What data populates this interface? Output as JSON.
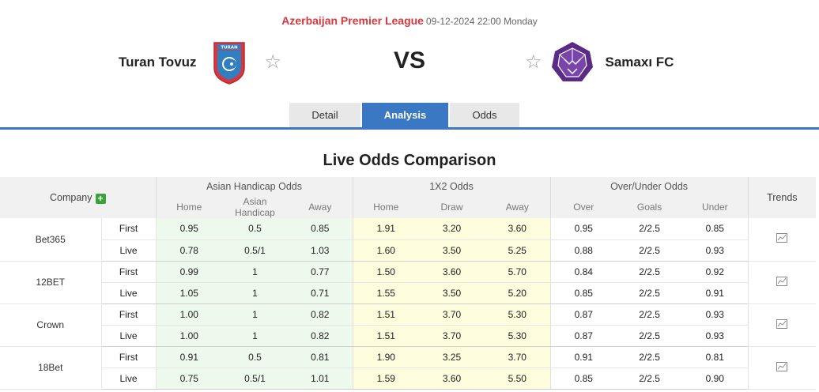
{
  "match": {
    "league": "Azerbaijan Premier League",
    "datetime": "09-12-2024 22:00 Monday",
    "home_team": "Turan Tovuz",
    "away_team": "Samaxı FC",
    "vs_label": "VS",
    "home_logo_text": "TURAN"
  },
  "tabs": [
    {
      "label": "Detail",
      "active": false
    },
    {
      "label": "Analysis",
      "active": true
    },
    {
      "label": "Odds",
      "active": false
    }
  ],
  "section_title": "Live Odds Comparison",
  "table": {
    "company_header": "Company",
    "trends_header": "Trends",
    "groups": {
      "ah": "Asian Handicap Odds",
      "x12": "1X2 Odds",
      "ou": "Over/Under Odds"
    },
    "subheaders": {
      "ah": [
        "Home",
        "Asian Handicap",
        "Away"
      ],
      "x12": [
        "Home",
        "Draw",
        "Away"
      ],
      "ou": [
        "Over",
        "Goals",
        "Under"
      ]
    },
    "companies": [
      {
        "name": "Bet365",
        "rows": [
          {
            "type": "First",
            "ah": [
              "0.95",
              "0.5",
              "0.85"
            ],
            "x12": [
              "1.91",
              "3.20",
              "3.60"
            ],
            "ou": [
              "0.95",
              "2/2.5",
              "0.85"
            ]
          },
          {
            "type": "Live",
            "ah": [
              "0.78",
              "0.5/1",
              "1.03"
            ],
            "x12": [
              "1.60",
              "3.50",
              "5.25"
            ],
            "ou": [
              "0.88",
              "2/2.5",
              "0.93"
            ]
          }
        ]
      },
      {
        "name": "12BET",
        "rows": [
          {
            "type": "First",
            "ah": [
              "0.99",
              "1",
              "0.77"
            ],
            "x12": [
              "1.50",
              "3.60",
              "5.70"
            ],
            "ou": [
              "0.84",
              "2/2.5",
              "0.92"
            ]
          },
          {
            "type": "Live",
            "ah": [
              "1.05",
              "1",
              "0.71"
            ],
            "x12": [
              "1.55",
              "3.50",
              "5.20"
            ],
            "ou": [
              "0.85",
              "2/2.5",
              "0.91"
            ]
          }
        ]
      },
      {
        "name": "Crown",
        "rows": [
          {
            "type": "First",
            "ah": [
              "1.00",
              "1",
              "0.82"
            ],
            "x12": [
              "1.51",
              "3.70",
              "5.30"
            ],
            "ou": [
              "0.87",
              "2/2.5",
              "0.93"
            ]
          },
          {
            "type": "Live",
            "ah": [
              "1.00",
              "1",
              "0.82"
            ],
            "x12": [
              "1.51",
              "3.70",
              "5.30"
            ],
            "ou": [
              "0.87",
              "2/2.5",
              "0.93"
            ]
          }
        ]
      },
      {
        "name": "18Bet",
        "rows": [
          {
            "type": "First",
            "ah": [
              "0.91",
              "0.5",
              "0.81"
            ],
            "x12": [
              "1.90",
              "3.25",
              "3.70"
            ],
            "ou": [
              "0.91",
              "2/2.5",
              "0.81"
            ]
          },
          {
            "type": "Live",
            "ah": [
              "0.75",
              "0.5/1",
              "1.01"
            ],
            "x12": [
              "1.59",
              "3.60",
              "5.50"
            ],
            "ou": [
              "0.85",
              "2/2.5",
              "0.90"
            ]
          }
        ]
      }
    ]
  },
  "colors": {
    "accent_blue": "#3a78c4",
    "league_red": "#d9363e",
    "ah_bg": "#eef9ee",
    "x12_bg": "#fdfdde",
    "plus_green": "#3aa33a",
    "away_logo_purple": "#5b2a86"
  },
  "icons": [
    "star-icon",
    "plus-icon",
    "trend-chart-icon"
  ]
}
